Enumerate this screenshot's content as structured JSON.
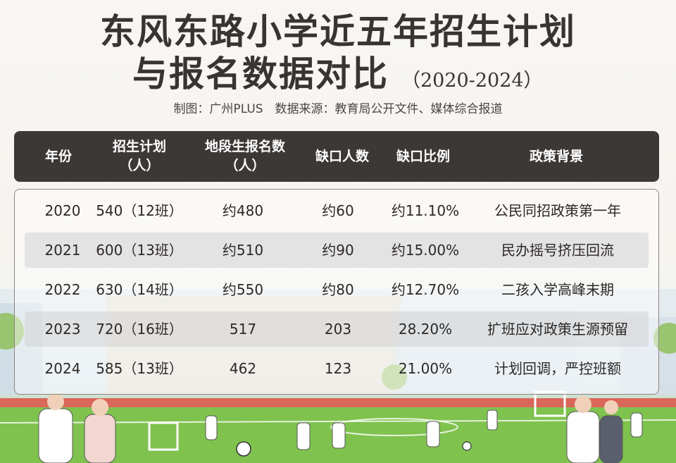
{
  "title": {
    "line1": "东风东路小学近五年招生计划",
    "line2": "与报名数据对比",
    "years": "（2020-2024）"
  },
  "credit": "制图：广州PLUS　数据来源：教育局公开文件、媒体综合报道",
  "table": {
    "headers": [
      {
        "line1": "年份",
        "line2": ""
      },
      {
        "line1": "招生计划",
        "line2": "（人）"
      },
      {
        "line1": "地段生报名数",
        "line2": "（人）"
      },
      {
        "line1": "缺口人数",
        "line2": ""
      },
      {
        "line1": "缺口比例",
        "line2": ""
      },
      {
        "line1": "政策背景",
        "line2": ""
      }
    ],
    "rows": [
      [
        "2020",
        "540（12班）",
        "约480",
        "约60",
        "约11.10%",
        "公民同招政策第一年"
      ],
      [
        "2021",
        "600（13班）",
        "约510",
        "约90",
        "约15.00%",
        "民办摇号挤压回流"
      ],
      [
        "2022",
        "630（14班）",
        "约550",
        "约80",
        "约12.70%",
        "二孩入学高峰末期"
      ],
      [
        "2023",
        "720（16班）",
        "517",
        "203",
        "28.20%",
        "扩班应对政策生源预留"
      ],
      [
        "2024",
        "585（13班）",
        "462",
        "123",
        "21.00%",
        "计划回调，严控班额"
      ]
    ]
  },
  "colors": {
    "header_bg": "#3c3836",
    "title_text": "#3a3431",
    "row_shade": "#d2d2d4",
    "field_green": "#7fc24e",
    "track_red": "#d9675a"
  }
}
